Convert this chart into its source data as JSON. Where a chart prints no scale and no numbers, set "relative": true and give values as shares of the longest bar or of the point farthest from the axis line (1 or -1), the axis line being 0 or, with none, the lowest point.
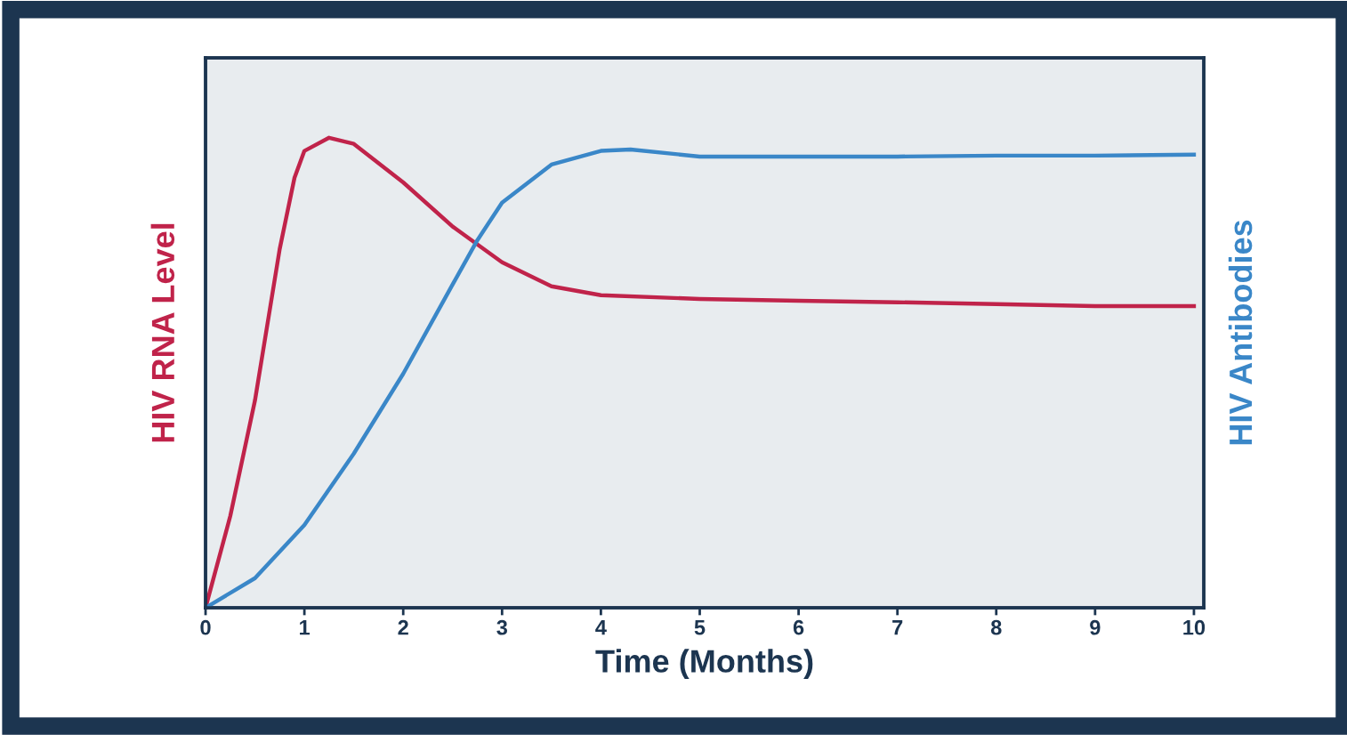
{
  "chart_data": {
    "type": "line",
    "relative": true,
    "xlabel": "Time (Months)",
    "ylabel": "HIV RNA Level",
    "y2label": "HIV Antibodies",
    "xlim": [
      0,
      10.1
    ],
    "xticks": [
      0,
      1,
      2,
      3,
      4,
      5,
      6,
      7,
      8,
      9,
      10
    ],
    "grid": false,
    "legend": false,
    "marker": "none",
    "line_style": "solid",
    "series": [
      {
        "color": "#c0234a",
        "x": [
          0,
          0.25,
          0.5,
          0.75,
          0.9,
          1.0,
          1.25,
          1.5,
          2,
          2.5,
          3,
          3.5,
          4,
          5,
          6,
          7,
          8,
          9,
          10
        ],
        "values": [
          0,
          0.195,
          0.441,
          0.763,
          0.915,
          0.972,
          1.0,
          0.987,
          0.905,
          0.811,
          0.735,
          0.684,
          0.665,
          0.657,
          0.653,
          0.65,
          0.646,
          0.642,
          0.642
        ]
      },
      {
        "color": "#3a87c8",
        "axis": "y2",
        "x": [
          0,
          0.5,
          1,
          1.5,
          2,
          2.5,
          2.75,
          3,
          3.5,
          4,
          4.3,
          5,
          6,
          7,
          8,
          9,
          10
        ],
        "values": [
          0,
          0.063,
          0.176,
          0.328,
          0.498,
          0.688,
          0.782,
          0.862,
          0.943,
          0.972,
          0.975,
          0.96,
          0.96,
          0.96,
          0.962,
          0.962,
          0.964
        ]
      }
    ]
  }
}
